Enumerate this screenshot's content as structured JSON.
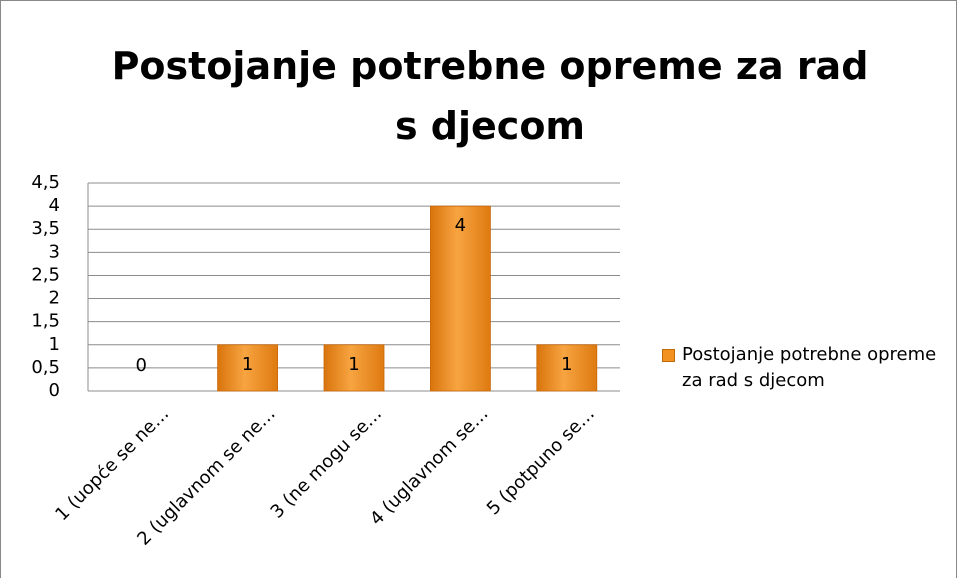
{
  "chart_data": {
    "type": "bar",
    "title": "Postojanje potrebne opreme za rad s djecom",
    "categories": [
      "1 (uopće se ne…",
      "2 (uglavnom se ne…",
      "3 (ne mogu se…",
      "4 (uglavnom se…",
      "5 (potpuno se…"
    ],
    "series": [
      {
        "name": "Postojanje potrebne opreme za rad s djecom",
        "color": "#f29321",
        "values": [
          0,
          1,
          1,
          4,
          1
        ]
      }
    ],
    "ylim": [
      0,
      4.5
    ],
    "yticks": [
      0,
      {
        "value": 0.5,
        "label": "0,5"
      },
      1,
      {
        "value": 1.5,
        "label": "1,5"
      },
      2,
      {
        "value": 2.5,
        "label": "2,5"
      },
      3,
      {
        "value": 3.5,
        "label": "3,5"
      },
      4,
      {
        "value": 4.5,
        "label": "4,5"
      }
    ],
    "grid": true,
    "legend": "right"
  }
}
